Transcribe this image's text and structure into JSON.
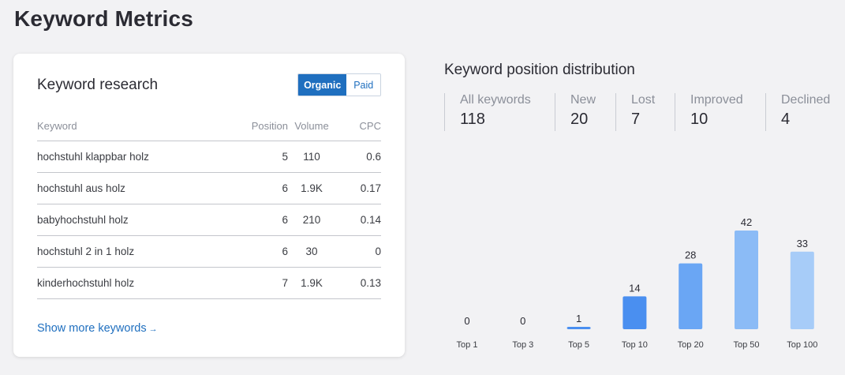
{
  "page_title": "Keyword Metrics",
  "research": {
    "title": "Keyword research",
    "toggle": {
      "organic": "Organic",
      "paid": "Paid",
      "selected": "Organic"
    },
    "columns": {
      "keyword": "Keyword",
      "position": "Position",
      "volume": "Volume",
      "cpc": "CPC"
    },
    "rows": [
      {
        "keyword": "hochstuhl klappbar holz",
        "position": "5",
        "volume": "110",
        "cpc": "0.6"
      },
      {
        "keyword": "hochstuhl aus holz",
        "position": "6",
        "volume": "1.9K",
        "cpc": "0.17"
      },
      {
        "keyword": "babyhochstuhl holz",
        "position": "6",
        "volume": "210",
        "cpc": "0.14"
      },
      {
        "keyword": "hochstuhl 2 in 1 holz",
        "position": "6",
        "volume": "30",
        "cpc": "0"
      },
      {
        "keyword": "kinderhochstuhl holz",
        "position": "7",
        "volume": "1.9K",
        "cpc": "0.13"
      }
    ],
    "show_more": "Show more keywords",
    "show_more_icon": "arrow-right-icon",
    "accent_color": "#1f6fbf"
  },
  "distribution": {
    "title": "Keyword position distribution",
    "metrics": [
      {
        "label": "All keywords",
        "value": "118"
      },
      {
        "label": "New",
        "value": "20"
      },
      {
        "label": "Lost",
        "value": "7"
      },
      {
        "label": "Improved",
        "value": "10"
      },
      {
        "label": "Declined",
        "value": "4"
      }
    ]
  },
  "chart_data": {
    "type": "bar",
    "title": "",
    "xlabel": "",
    "ylabel": "",
    "categories": [
      "Top 1",
      "Top 3",
      "Top 5",
      "Top 10",
      "Top 20",
      "Top 50",
      "Top 100"
    ],
    "values": [
      0,
      0,
      1,
      14,
      28,
      42,
      33
    ],
    "colors": [
      "#4a8ff0",
      "#4a8ff0",
      "#4a8ff0",
      "#4a8ff0",
      "#6aa6f4",
      "#8bbbf6",
      "#a7ccf8"
    ],
    "ylim": [
      0,
      42
    ],
    "grid": false,
    "legend": "none"
  }
}
